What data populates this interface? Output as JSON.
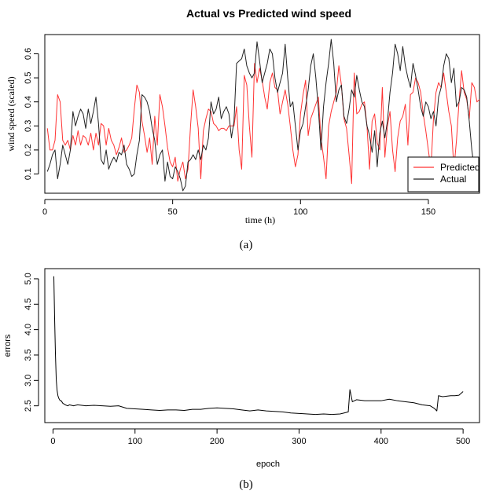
{
  "captions": {
    "a": "(a)",
    "b": "(b)"
  },
  "colors": {
    "predicted": "#ff3333",
    "actual": "#222222",
    "errors": "#000000"
  },
  "chart_data": [
    {
      "type": "line",
      "title": "Actual vs Predicted wind speed",
      "xlabel": "time (h)",
      "ylabel": "wind speed  (scaled)",
      "xlim": [
        0,
        170
      ],
      "ylim": [
        0.02,
        0.68
      ],
      "xticks": [
        0,
        50,
        100,
        150
      ],
      "yticks": [
        0.1,
        0.2,
        0.3,
        0.4,
        0.5,
        0.6
      ],
      "legend_position": "bottom-right",
      "grid": false,
      "series": [
        {
          "name": "Predicted",
          "x_start": 1,
          "values": [
            0.29,
            0.2,
            0.2,
            0.24,
            0.43,
            0.4,
            0.24,
            0.22,
            0.24,
            0.2,
            0.26,
            0.22,
            0.28,
            0.22,
            0.26,
            0.25,
            0.22,
            0.27,
            0.2,
            0.27,
            0.22,
            0.31,
            0.3,
            0.22,
            0.29,
            0.24,
            0.22,
            0.18,
            0.21,
            0.25,
            0.19,
            0.2,
            0.22,
            0.25,
            0.37,
            0.47,
            0.44,
            0.32,
            0.26,
            0.19,
            0.25,
            0.14,
            0.34,
            0.22,
            0.43,
            0.38,
            0.3,
            0.21,
            0.15,
            0.13,
            0.17,
            0.07,
            0.12,
            0.15,
            0.08,
            0.12,
            0.3,
            0.45,
            0.38,
            0.29,
            0.08,
            0.28,
            0.33,
            0.37,
            0.36,
            0.31,
            0.3,
            0.28,
            0.29,
            0.29,
            0.28,
            0.3,
            0.3,
            0.3,
            0.38,
            0.2,
            0.12,
            0.51,
            0.47,
            0.3,
            0.17,
            0.56,
            0.48,
            0.54,
            0.49,
            0.42,
            0.37,
            0.48,
            0.52,
            0.46,
            0.45,
            0.35,
            0.4,
            0.45,
            0.39,
            0.3,
            0.2,
            0.13,
            0.18,
            0.35,
            0.43,
            0.49,
            0.26,
            0.33,
            0.36,
            0.39,
            0.42,
            0.25,
            0.17,
            0.08,
            0.3,
            0.36,
            0.4,
            0.44,
            0.55,
            0.47,
            0.33,
            0.29,
            0.18,
            0.06,
            0.52,
            0.35,
            0.36,
            0.39,
            0.4,
            0.3,
            0.12,
            0.32,
            0.35,
            0.23,
            0.2,
            0.46,
            0.17,
            0.3,
            0.36,
            0.2,
            0.11,
            0.25,
            0.32,
            0.34,
            0.39,
            0.22,
            0.43,
            0.44,
            0.5,
            0.48,
            0.44,
            0.35,
            0.28,
            0.2,
            0.12,
            0.33,
            0.44,
            0.48,
            0.46,
            0.52,
            0.44,
            0.36,
            0.3,
            0.12,
            0.24,
            0.4,
            0.53,
            0.44,
            0.41,
            0.33,
            0.48,
            0.46,
            0.4,
            0.41
          ]
        },
        {
          "name": "Actual",
          "x_start": 1,
          "values": [
            0.11,
            0.14,
            0.18,
            0.2,
            0.08,
            0.14,
            0.22,
            0.18,
            0.14,
            0.2,
            0.36,
            0.3,
            0.34,
            0.37,
            0.35,
            0.29,
            0.37,
            0.31,
            0.36,
            0.42,
            0.31,
            0.16,
            0.14,
            0.2,
            0.12,
            0.15,
            0.17,
            0.15,
            0.19,
            0.18,
            0.22,
            0.14,
            0.12,
            0.09,
            0.1,
            0.18,
            0.24,
            0.43,
            0.42,
            0.4,
            0.36,
            0.29,
            0.24,
            0.14,
            0.18,
            0.2,
            0.07,
            0.15,
            0.09,
            0.08,
            0.13,
            0.11,
            0.08,
            0.03,
            0.05,
            0.15,
            0.16,
            0.18,
            0.16,
            0.2,
            0.16,
            0.22,
            0.2,
            0.25,
            0.4,
            0.35,
            0.37,
            0.42,
            0.33,
            0.36,
            0.38,
            0.35,
            0.25,
            0.32,
            0.56,
            0.57,
            0.58,
            0.62,
            0.55,
            0.52,
            0.5,
            0.52,
            0.65,
            0.57,
            0.48,
            0.52,
            0.56,
            0.62,
            0.6,
            0.5,
            0.44,
            0.48,
            0.52,
            0.64,
            0.5,
            0.38,
            0.4,
            0.3,
            0.2,
            0.28,
            0.31,
            0.38,
            0.45,
            0.55,
            0.6,
            0.5,
            0.37,
            0.2,
            0.38,
            0.48,
            0.56,
            0.66,
            0.56,
            0.4,
            0.45,
            0.47,
            0.34,
            0.31,
            0.37,
            0.45,
            0.42,
            0.51,
            0.45,
            0.4,
            0.38,
            0.3,
            0.26,
            0.19,
            0.28,
            0.13,
            0.27,
            0.32,
            0.25,
            0.32,
            0.44,
            0.52,
            0.64,
            0.6,
            0.53,
            0.63,
            0.55,
            0.5,
            0.46,
            0.56,
            0.51,
            0.45,
            0.38,
            0.34,
            0.4,
            0.38,
            0.33,
            0.36,
            0.3,
            0.42,
            0.46,
            0.55,
            0.6,
            0.58,
            0.48,
            0.54,
            0.38,
            0.4,
            0.46,
            0.45,
            0.42,
            0.32,
            0.2,
            0.12
          ]
        }
      ]
    },
    {
      "type": "line",
      "title": "",
      "xlabel": "epoch",
      "ylabel": "errors",
      "xlim": [
        -10,
        520
      ],
      "ylim": [
        2.17,
        5.2
      ],
      "xticks": [
        0,
        100,
        200,
        300,
        400,
        500
      ],
      "yticks": [
        2.5,
        3.0,
        3.5,
        4.0,
        4.5,
        5.0
      ],
      "grid": false,
      "series": [
        {
          "name": "",
          "x": [
            1,
            2,
            3,
            4,
            5,
            6,
            7,
            8,
            9,
            10,
            12,
            15,
            18,
            20,
            25,
            30,
            40,
            50,
            60,
            70,
            80,
            90,
            100,
            110,
            120,
            130,
            140,
            150,
            160,
            170,
            180,
            190,
            200,
            210,
            220,
            230,
            240,
            250,
            260,
            270,
            280,
            290,
            300,
            310,
            320,
            330,
            340,
            350,
            355,
            360,
            362,
            365,
            370,
            380,
            390,
            400,
            410,
            420,
            430,
            440,
            450,
            460,
            465,
            468,
            470,
            475,
            480,
            485,
            490,
            495,
            500
          ],
          "values": [
            5.05,
            4.2,
            3.5,
            3.0,
            2.8,
            2.7,
            2.65,
            2.62,
            2.6,
            2.6,
            2.55,
            2.52,
            2.5,
            2.52,
            2.5,
            2.52,
            2.5,
            2.51,
            2.5,
            2.49,
            2.5,
            2.45,
            2.44,
            2.43,
            2.42,
            2.41,
            2.42,
            2.42,
            2.41,
            2.43,
            2.43,
            2.45,
            2.46,
            2.45,
            2.44,
            2.42,
            2.4,
            2.42,
            2.4,
            2.39,
            2.38,
            2.36,
            2.35,
            2.34,
            2.33,
            2.34,
            2.33,
            2.34,
            2.36,
            2.38,
            2.82,
            2.58,
            2.62,
            2.6,
            2.6,
            2.6,
            2.63,
            2.6,
            2.58,
            2.56,
            2.52,
            2.5,
            2.45,
            2.4,
            2.7,
            2.68,
            2.69,
            2.7,
            2.7,
            2.71,
            2.78
          ]
        }
      ]
    }
  ]
}
